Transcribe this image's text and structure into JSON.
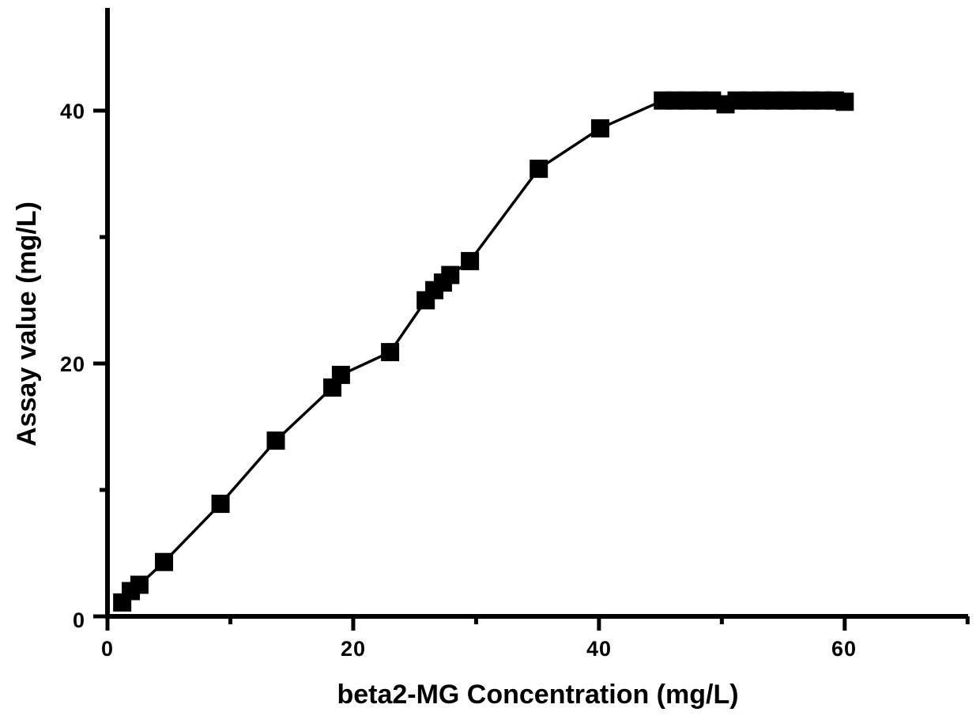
{
  "chart_data": {
    "type": "line",
    "subtype": "scatter-line-calibration-curve",
    "title": "",
    "xlabel": "beta2-MG Concentration (mg/L)",
    "ylabel": "Assay value (mg/L)",
    "xlim": [
      0,
      70
    ],
    "ylim": [
      0,
      48
    ],
    "grid": false,
    "legend": "none",
    "marker": "filled-square",
    "colors": {
      "foreground": "#000000",
      "background": "#ffffff"
    },
    "x_major_ticks": [
      0,
      20,
      40,
      60
    ],
    "x_minor_ticks": [
      10,
      30,
      50,
      70
    ],
    "y_major_ticks": [
      0,
      20,
      40
    ],
    "y_minor_ticks": [
      10,
      30
    ],
    "x_tick_labels": [
      "0",
      "20",
      "40",
      "60"
    ],
    "y_tick_labels": [
      "0",
      "20",
      "40"
    ],
    "points": [
      [
        1.2,
        1.1
      ],
      [
        1.9,
        2.0
      ],
      [
        2.6,
        2.5
      ],
      [
        4.6,
        4.3
      ],
      [
        9.2,
        8.9
      ],
      [
        13.7,
        13.9
      ],
      [
        18.3,
        18.1
      ],
      [
        19.0,
        19.1
      ],
      [
        23.0,
        20.9
      ],
      [
        25.9,
        25.0
      ],
      [
        26.6,
        25.8
      ],
      [
        27.3,
        26.4
      ],
      [
        27.9,
        27.0
      ],
      [
        29.5,
        28.1
      ],
      [
        35.1,
        35.4
      ],
      [
        40.1,
        38.6
      ],
      [
        45.2,
        40.8
      ],
      [
        46.2,
        40.8
      ],
      [
        47.2,
        40.8
      ],
      [
        48.2,
        40.8
      ],
      [
        49.2,
        40.8
      ],
      [
        50.3,
        40.5
      ],
      [
        51.2,
        40.8
      ],
      [
        52.2,
        40.8
      ],
      [
        53.2,
        40.8
      ],
      [
        54.2,
        40.8
      ],
      [
        55.2,
        40.8
      ],
      [
        56.2,
        40.8
      ],
      [
        57.2,
        40.8
      ],
      [
        58.2,
        40.8
      ],
      [
        59.2,
        40.8
      ],
      [
        60.0,
        40.7
      ]
    ]
  }
}
